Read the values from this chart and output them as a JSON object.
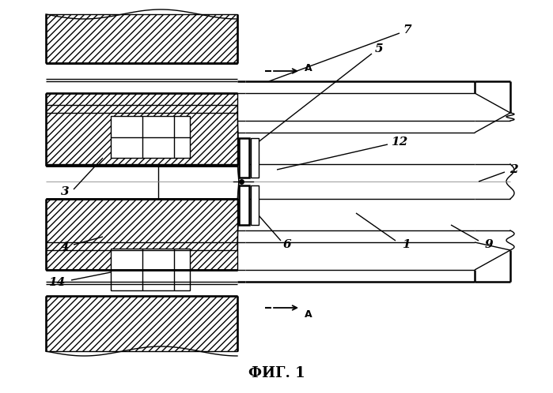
{
  "fig_width": 6.99,
  "fig_height": 4.98,
  "dpi": 100,
  "bg": "#ffffff",
  "lc": "#000000",
  "title": "ФИГ. 1",
  "lw": 1.0,
  "lw2": 1.8
}
